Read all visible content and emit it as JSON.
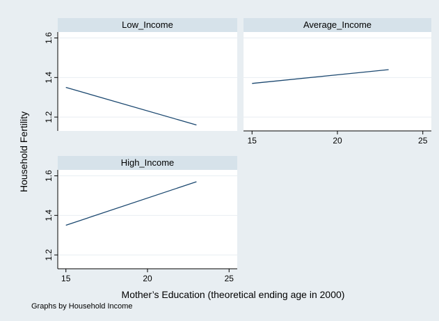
{
  "chart_data": {
    "type": "line",
    "by_note": "Graphs by Household Income",
    "xlabel": "Mother’s Education (theoretical ending age in 2000)",
    "ylabel": "Household Fertility",
    "xlim": [
      14.5,
      25.5
    ],
    "ylim": [
      1.13,
      1.63
    ],
    "x_ticks": [
      15,
      20,
      25
    ],
    "y_ticks": [
      1.2,
      1.4,
      1.6
    ],
    "grid": true,
    "colors": {
      "outer_bg": "#e8eef2",
      "strip_bg": "#d6e2ea",
      "plot_bg": "#ffffff",
      "grid": "#e8eef2",
      "line": "#1a476f"
    },
    "panels": [
      {
        "title": "Low_Income",
        "x": [
          15,
          23
        ],
        "y": [
          1.35,
          1.16
        ]
      },
      {
        "title": "Average_Income",
        "x": [
          15,
          23
        ],
        "y": [
          1.37,
          1.44
        ]
      },
      {
        "title": "High_Income",
        "x": [
          15,
          23
        ],
        "y": [
          1.35,
          1.57
        ]
      }
    ]
  }
}
